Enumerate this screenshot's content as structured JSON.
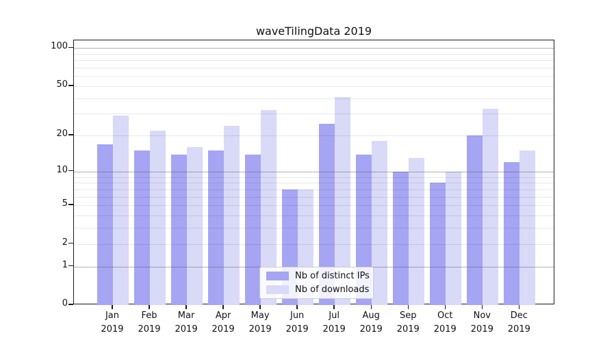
{
  "chart_data": {
    "type": "bar",
    "title": "waveTilingData 2019",
    "categories": [
      "Jan",
      "Feb",
      "Mar",
      "Apr",
      "May",
      "Jun",
      "Jul",
      "Aug",
      "Sep",
      "Oct",
      "Nov",
      "Dec"
    ],
    "category_year": "2019",
    "series": [
      {
        "name": "Nb of distinct IPs",
        "color": "#a5a5f3",
        "values": [
          17,
          15,
          14,
          15,
          14,
          7,
          25,
          14,
          10,
          8,
          20,
          12
        ]
      },
      {
        "name": "Nb of downloads",
        "color": "#d9d9f8",
        "values": [
          29,
          22,
          16,
          24,
          32,
          7,
          41,
          18,
          13,
          10,
          33,
          15
        ]
      }
    ],
    "xlabel": "",
    "ylabel": "",
    "yscale": "log1p",
    "ylim": [
      0,
      115
    ],
    "y_tick_labels": [
      "100",
      "50",
      "20",
      "10",
      "5",
      "2",
      "1",
      "0"
    ],
    "y_tick_values": [
      100,
      50,
      20,
      10,
      5,
      2,
      1,
      0
    ],
    "major_gridlines": [
      1,
      10,
      100
    ],
    "minor_gridlines": [
      2,
      3,
      4,
      5,
      6,
      7,
      8,
      9,
      20,
      30,
      40,
      50,
      60,
      70,
      80,
      90
    ],
    "grid": true,
    "legend_position": "lower center",
    "colors": {
      "major_grid": "rgba(85,85,85,0.45)",
      "minor_grid": "rgba(0,0,0,0.09)",
      "spine": "#1a1a1a",
      "text": "#111111",
      "legend_bg": "rgba(255,255,255,0.85)",
      "legend_border": "#cccccc",
      "background": "#ffffff"
    }
  }
}
